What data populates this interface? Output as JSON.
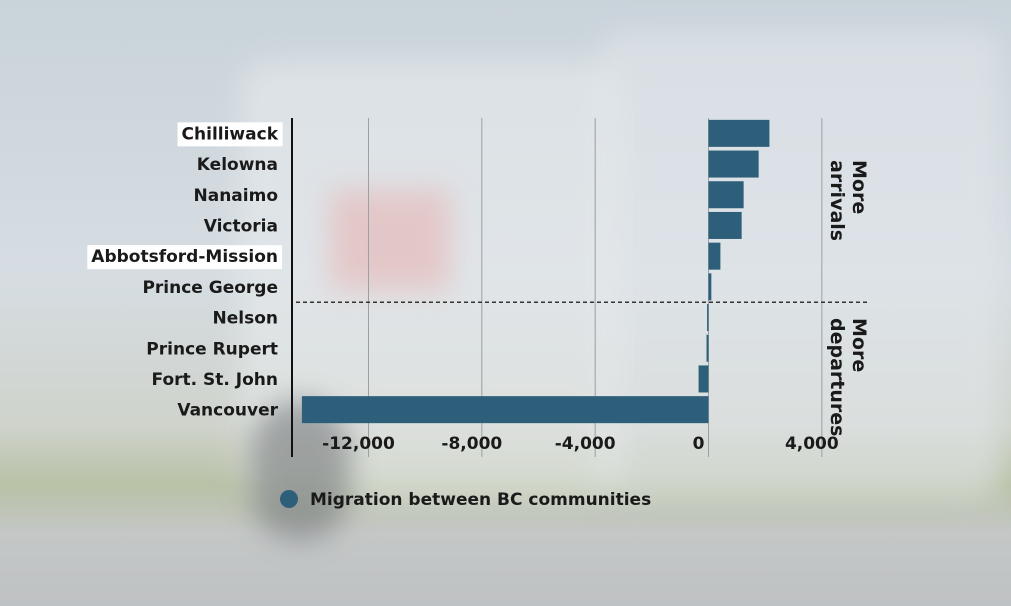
{
  "chart_data": {
    "type": "barh",
    "categories": [
      "Chilliwack",
      "Kelowna",
      "Nanaimo",
      "Victoria",
      "Abbotsford-Mission",
      "Prince George",
      "Nelson",
      "Prince Rupert",
      "Fort. St. John",
      "Vancouver"
    ],
    "series": [
      {
        "name": "Migration between BC communities",
        "color": "#2e5f7a",
        "values": [
          2150,
          1770,
          1240,
          1170,
          420,
          100,
          -50,
          -70,
          -350,
          -14350
        ]
      }
    ],
    "xlim": [
      -14700,
      5700
    ],
    "xticks": [
      {
        "value": -12000,
        "label": "-12,000"
      },
      {
        "value": -8000,
        "label": "-8,000"
      },
      {
        "value": -4000,
        "label": "-4,000"
      },
      0,
      {
        "value": 4000,
        "label": "4,000"
      }
    ],
    "grid": true,
    "highlighted_categories": [
      0,
      4
    ],
    "annotations": [
      "More arrivals",
      "More departures"
    ]
  }
}
